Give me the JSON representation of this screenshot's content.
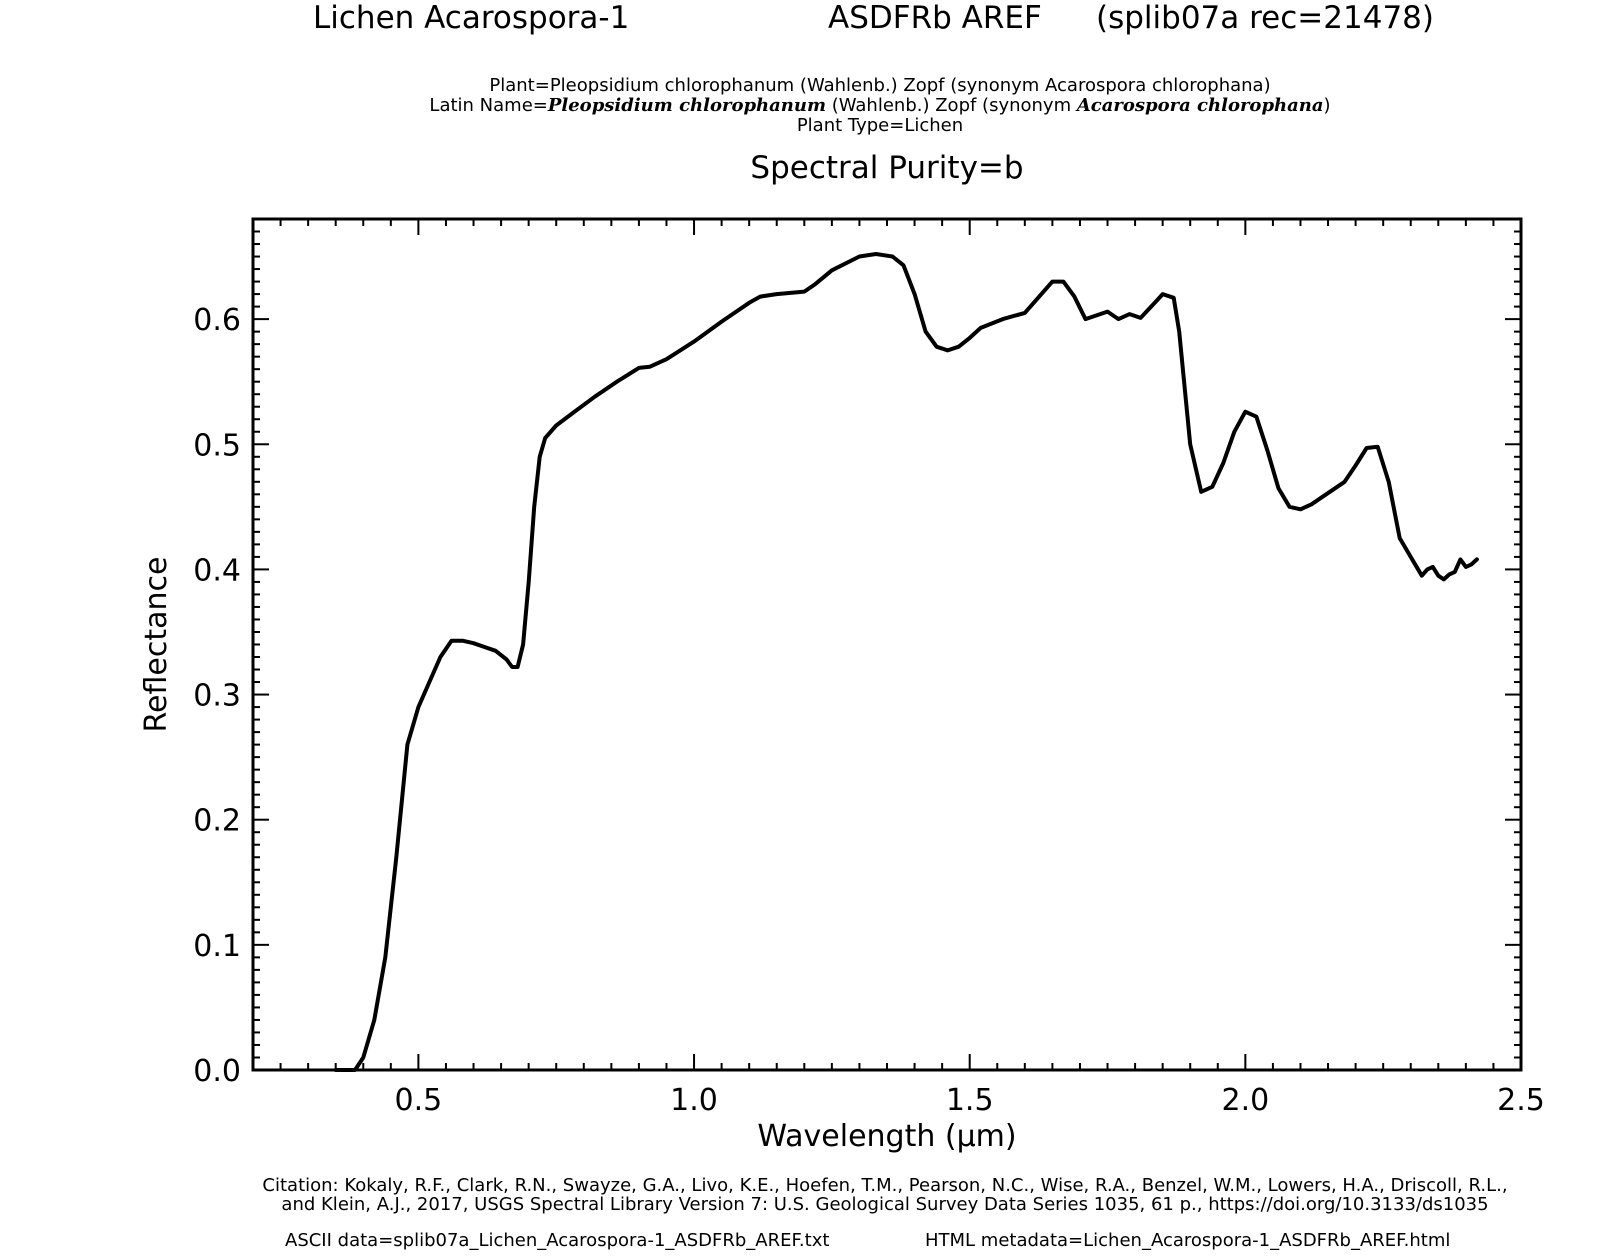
{
  "header": {
    "sample_name": "Lichen Acarospora-1",
    "spectrometer": "ASDFRb AREF",
    "record": "(splib07a rec=21478)"
  },
  "metadata": {
    "plant_line": "Plant=Pleopsidium chlorophanum (Wahlenb.) Zopf (synonym Acarospora chlorophana)",
    "latin_prefix": "Latin Name=",
    "latin_genus": "Pleopsidium chlorophanum",
    "latin_mid": " (Wahlenb.) Zopf (synonym ",
    "latin_synonym": "Acarospora chlorophana",
    "latin_suffix": ")",
    "plant_type": "Plant Type=Lichen",
    "purity": "Spectral Purity=b"
  },
  "footer": {
    "citation_1": "Citation: Kokaly, R.F., Clark, R.N., Swayze, G.A., Livo, K.E., Hoefen, T.M., Pearson, N.C., Wise, R.A., Benzel, W.M., Lowers, H.A., Driscoll, R.L.,",
    "citation_2": "and Klein, A.J., 2017, USGS Spectral Library Version 7: U.S. Geological Survey Data Series 1035, 61 p., https://doi.org/10.3133/ds1035",
    "ascii_file": "ASCII data=splib07a_Lichen_Acarospora-1_ASDFRb_AREF.txt",
    "html_file": "HTML metadata=Lichen_Acarospora-1_ASDFRb_AREF.html"
  },
  "chart_data": {
    "type": "line",
    "xlabel": "Wavelength (μm)",
    "ylabel": "Reflectance",
    "xlim": [
      0.2,
      2.5
    ],
    "ylim": [
      0.0,
      0.68
    ],
    "xticks": [
      0.5,
      1.0,
      1.5,
      2.0,
      2.5
    ],
    "xtick_labels": [
      "0.5",
      "1.0",
      "1.5",
      "2.0",
      "2.5"
    ],
    "yticks": [
      0.0,
      0.1,
      0.2,
      0.3,
      0.4,
      0.5,
      0.6
    ],
    "ytick_labels": [
      "0.0",
      "0.1",
      "0.2",
      "0.3",
      "0.4",
      "0.5",
      "0.6"
    ],
    "grid": false,
    "line_color": "#000000",
    "series": [
      {
        "x": [
          0.35,
          0.385,
          0.4,
          0.42,
          0.44,
          0.46,
          0.48,
          0.5,
          0.52,
          0.54,
          0.56,
          0.58,
          0.6,
          0.62,
          0.64,
          0.66,
          0.67,
          0.68,
          0.69,
          0.7,
          0.71,
          0.72,
          0.73,
          0.75,
          0.78,
          0.82,
          0.86,
          0.9,
          0.92,
          0.95,
          1.0,
          1.05,
          1.1,
          1.12,
          1.15,
          1.2,
          1.22,
          1.25,
          1.3,
          1.33,
          1.36,
          1.38,
          1.4,
          1.42,
          1.44,
          1.46,
          1.48,
          1.5,
          1.52,
          1.56,
          1.6,
          1.65,
          1.67,
          1.69,
          1.71,
          1.73,
          1.75,
          1.77,
          1.79,
          1.81,
          1.84,
          1.85,
          1.87,
          1.88,
          1.9,
          1.92,
          1.94,
          1.96,
          1.98,
          2.0,
          2.02,
          2.04,
          2.06,
          2.08,
          2.1,
          2.12,
          2.14,
          2.16,
          2.18,
          2.2,
          2.22,
          2.24,
          2.26,
          2.28,
          2.3,
          2.32,
          2.33,
          2.34,
          2.35,
          2.36,
          2.37,
          2.38,
          2.39,
          2.4,
          2.41,
          2.42
        ],
        "y": [
          0.0,
          0.0,
          0.01,
          0.04,
          0.09,
          0.17,
          0.26,
          0.29,
          0.31,
          0.33,
          0.343,
          0.343,
          0.341,
          0.338,
          0.335,
          0.328,
          0.322,
          0.322,
          0.34,
          0.39,
          0.45,
          0.49,
          0.505,
          0.515,
          0.525,
          0.538,
          0.55,
          0.561,
          0.562,
          0.568,
          0.582,
          0.598,
          0.613,
          0.618,
          0.62,
          0.622,
          0.628,
          0.639,
          0.65,
          0.652,
          0.65,
          0.643,
          0.62,
          0.59,
          0.578,
          0.575,
          0.578,
          0.585,
          0.593,
          0.6,
          0.605,
          0.63,
          0.63,
          0.618,
          0.6,
          0.603,
          0.606,
          0.6,
          0.604,
          0.601,
          0.615,
          0.62,
          0.617,
          0.59,
          0.5,
          0.462,
          0.466,
          0.485,
          0.51,
          0.526,
          0.522,
          0.495,
          0.465,
          0.45,
          0.448,
          0.452,
          0.458,
          0.464,
          0.47,
          0.483,
          0.497,
          0.498,
          0.47,
          0.425,
          0.41,
          0.395,
          0.4,
          0.402,
          0.395,
          0.392,
          0.396,
          0.398,
          0.408,
          0.402,
          0.404,
          0.408
        ]
      }
    ]
  }
}
